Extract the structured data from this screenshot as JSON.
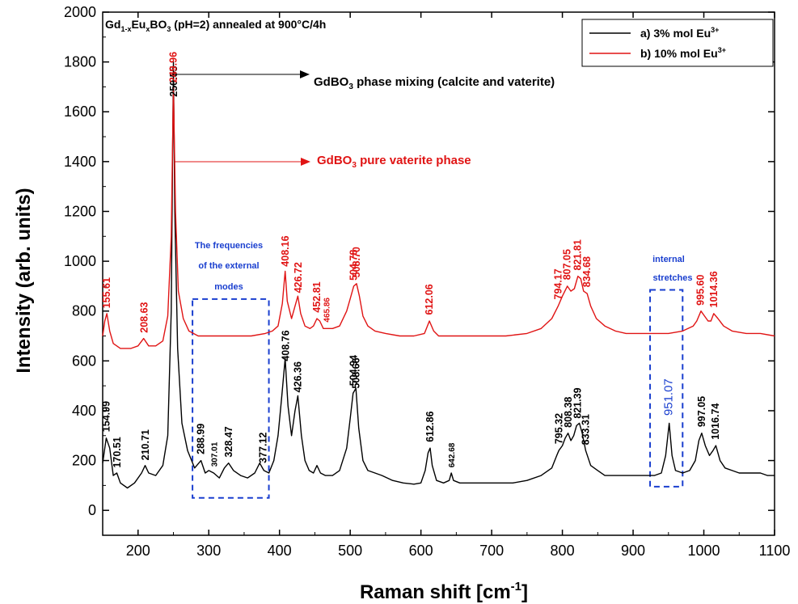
{
  "chart_data": {
    "type": "line",
    "title_parts": [
      "Gd",
      "1-x",
      "Eu",
      "x",
      "BO",
      "3",
      " (pH=2) annealed at 900°C/4h"
    ],
    "xlabel_parts": [
      "Raman shift [cm",
      "-1",
      "]"
    ],
    "ylabel": "Intensity (arb. units)",
    "xlim": [
      150,
      1100
    ],
    "ylim": [
      -100,
      2000
    ],
    "xticks": [
      200,
      300,
      400,
      500,
      600,
      700,
      800,
      900,
      1000,
      1100
    ],
    "yticks": [
      0,
      200,
      400,
      600,
      800,
      1000,
      1200,
      1400,
      1600,
      1800,
      2000
    ],
    "legend_position": "top-right",
    "series": [
      {
        "name_parts": [
          "a) 3% mol Eu",
          "3+"
        ],
        "color": "#000000",
        "points": [
          [
            150,
            190
          ],
          [
            155,
            290
          ],
          [
            160,
            250
          ],
          [
            165,
            140
          ],
          [
            170,
            150
          ],
          [
            175,
            110
          ],
          [
            185,
            90
          ],
          [
            195,
            110
          ],
          [
            205,
            150
          ],
          [
            210,
            180
          ],
          [
            215,
            150
          ],
          [
            225,
            140
          ],
          [
            235,
            180
          ],
          [
            242,
            300
          ],
          [
            247,
            800
          ],
          [
            250,
            1800
          ],
          [
            252,
            1200
          ],
          [
            256,
            650
          ],
          [
            262,
            350
          ],
          [
            270,
            240
          ],
          [
            280,
            170
          ],
          [
            289,
            200
          ],
          [
            295,
            150
          ],
          [
            300,
            160
          ],
          [
            307,
            150
          ],
          [
            315,
            130
          ],
          [
            322,
            170
          ],
          [
            328,
            190
          ],
          [
            335,
            160
          ],
          [
            345,
            140
          ],
          [
            355,
            130
          ],
          [
            365,
            150
          ],
          [
            372,
            190
          ],
          [
            378,
            160
          ],
          [
            385,
            150
          ],
          [
            392,
            200
          ],
          [
            398,
            300
          ],
          [
            403,
            450
          ],
          [
            408,
            610
          ],
          [
            412,
            420
          ],
          [
            417,
            300
          ],
          [
            422,
            400
          ],
          [
            426,
            460
          ],
          [
            431,
            300
          ],
          [
            436,
            200
          ],
          [
            442,
            160
          ],
          [
            448,
            150
          ],
          [
            453,
            180
          ],
          [
            458,
            150
          ],
          [
            465,
            140
          ],
          [
            475,
            140
          ],
          [
            485,
            160
          ],
          [
            495,
            250
          ],
          [
            500,
            370
          ],
          [
            504,
            470
          ],
          [
            508,
            490
          ],
          [
            512,
            330
          ],
          [
            518,
            200
          ],
          [
            525,
            160
          ],
          [
            535,
            150
          ],
          [
            545,
            140
          ],
          [
            560,
            120
          ],
          [
            575,
            110
          ],
          [
            590,
            105
          ],
          [
            600,
            110
          ],
          [
            606,
            160
          ],
          [
            610,
            230
          ],
          [
            613,
            250
          ],
          [
            616,
            180
          ],
          [
            622,
            120
          ],
          [
            632,
            110
          ],
          [
            640,
            120
          ],
          [
            643,
            150
          ],
          [
            646,
            120
          ],
          [
            655,
            110
          ],
          [
            670,
            110
          ],
          [
            690,
            110
          ],
          [
            710,
            110
          ],
          [
            730,
            110
          ],
          [
            750,
            120
          ],
          [
            770,
            140
          ],
          [
            785,
            170
          ],
          [
            792,
            220
          ],
          [
            795,
            240
          ],
          [
            800,
            260
          ],
          [
            804,
            290
          ],
          [
            808,
            310
          ],
          [
            812,
            280
          ],
          [
            816,
            300
          ],
          [
            820,
            340
          ],
          [
            824,
            350
          ],
          [
            828,
            310
          ],
          [
            833,
            240
          ],
          [
            840,
            180
          ],
          [
            850,
            160
          ],
          [
            860,
            140
          ],
          [
            870,
            140
          ],
          [
            880,
            140
          ],
          [
            890,
            140
          ],
          [
            900,
            140
          ],
          [
            910,
            140
          ],
          [
            920,
            140
          ],
          [
            930,
            140
          ],
          [
            940,
            150
          ],
          [
            946,
            220
          ],
          [
            951,
            350
          ],
          [
            955,
            220
          ],
          [
            960,
            160
          ],
          [
            970,
            150
          ],
          [
            980,
            160
          ],
          [
            988,
            200
          ],
          [
            993,
            280
          ],
          [
            997,
            310
          ],
          [
            1002,
            260
          ],
          [
            1008,
            220
          ],
          [
            1013,
            240
          ],
          [
            1017,
            260
          ],
          [
            1023,
            200
          ],
          [
            1030,
            170
          ],
          [
            1040,
            160
          ],
          [
            1050,
            150
          ],
          [
            1060,
            150
          ],
          [
            1070,
            150
          ],
          [
            1080,
            150
          ],
          [
            1090,
            140
          ],
          [
            1100,
            140
          ]
        ]
      },
      {
        "name_parts": [
          "b) 10% mol Eu",
          "3+"
        ],
        "color": "#e01414",
        "points": [
          [
            150,
            700
          ],
          [
            153,
            760
          ],
          [
            156,
            790
          ],
          [
            160,
            720
          ],
          [
            165,
            670
          ],
          [
            175,
            650
          ],
          [
            190,
            650
          ],
          [
            200,
            660
          ],
          [
            208,
            690
          ],
          [
            215,
            660
          ],
          [
            225,
            660
          ],
          [
            235,
            680
          ],
          [
            242,
            780
          ],
          [
            247,
            1100
          ],
          [
            250,
            1700
          ],
          [
            253,
            1200
          ],
          [
            257,
            880
          ],
          [
            264,
            770
          ],
          [
            272,
            720
          ],
          [
            285,
            700
          ],
          [
            300,
            700
          ],
          [
            320,
            700
          ],
          [
            340,
            700
          ],
          [
            360,
            700
          ],
          [
            380,
            710
          ],
          [
            390,
            720
          ],
          [
            398,
            740
          ],
          [
            404,
            830
          ],
          [
            408,
            960
          ],
          [
            411,
            840
          ],
          [
            417,
            770
          ],
          [
            422,
            820
          ],
          [
            426,
            860
          ],
          [
            430,
            790
          ],
          [
            436,
            740
          ],
          [
            443,
            730
          ],
          [
            448,
            740
          ],
          [
            453,
            770
          ],
          [
            457,
            760
          ],
          [
            462,
            730
          ],
          [
            468,
            730
          ],
          [
            475,
            730
          ],
          [
            485,
            740
          ],
          [
            495,
            800
          ],
          [
            500,
            850
          ],
          [
            505,
            900
          ],
          [
            509,
            910
          ],
          [
            513,
            860
          ],
          [
            518,
            780
          ],
          [
            525,
            740
          ],
          [
            535,
            720
          ],
          [
            550,
            710
          ],
          [
            570,
            700
          ],
          [
            590,
            700
          ],
          [
            605,
            710
          ],
          [
            612,
            760
          ],
          [
            618,
            720
          ],
          [
            625,
            700
          ],
          [
            640,
            700
          ],
          [
            660,
            700
          ],
          [
            690,
            700
          ],
          [
            720,
            700
          ],
          [
            750,
            710
          ],
          [
            770,
            730
          ],
          [
            785,
            770
          ],
          [
            794,
            820
          ],
          [
            800,
            860
          ],
          [
            807,
            900
          ],
          [
            812,
            880
          ],
          [
            817,
            890
          ],
          [
            822,
            940
          ],
          [
            826,
            930
          ],
          [
            830,
            880
          ],
          [
            835,
            870
          ],
          [
            840,
            820
          ],
          [
            848,
            770
          ],
          [
            860,
            740
          ],
          [
            875,
            720
          ],
          [
            890,
            710
          ],
          [
            910,
            710
          ],
          [
            930,
            710
          ],
          [
            950,
            710
          ],
          [
            970,
            720
          ],
          [
            985,
            740
          ],
          [
            990,
            760
          ],
          [
            996,
            800
          ],
          [
            1001,
            780
          ],
          [
            1006,
            760
          ],
          [
            1010,
            760
          ],
          [
            1014,
            790
          ],
          [
            1020,
            770
          ],
          [
            1028,
            740
          ],
          [
            1040,
            720
          ],
          [
            1060,
            710
          ],
          [
            1080,
            710
          ],
          [
            1100,
            700
          ]
        ]
      }
    ],
    "black_peak_labels": [
      "154.99",
      "170.51",
      "210.71",
      "250.55",
      "288.99",
      "307.01",
      "328.47",
      "377.12",
      "408.76",
      "426.36",
      "504.94",
      "508.66",
      "612.86",
      "642.68",
      "795.32",
      "808.38",
      "821.39",
      "833.31",
      "997.05",
      "1016.74"
    ],
    "black_peak_small": [
      "307.01",
      "642.68"
    ],
    "black_peak_positions": [
      154.99,
      170.51,
      210.71,
      250.55,
      288.99,
      307.01,
      328.47,
      377.12,
      408.76,
      426.36,
      504.94,
      508.66,
      612.86,
      642.68,
      795.32,
      808.38,
      821.39,
      833.31,
      997.05,
      1016.74
    ],
    "blue_peak_label": "951.07",
    "red_peak_labels": [
      "155.61",
      "208.63",
      "249.96",
      "408.16",
      "426.72",
      "452.81",
      "465.86",
      "504.78",
      "508.70",
      "612.06",
      "794.17",
      "807.05",
      "821.81",
      "834.68",
      "995.60",
      "1014.36"
    ],
    "red_peak_small": [
      "465.86"
    ],
    "red_peak_positions": [
      155.61,
      208.63,
      249.96,
      408.16,
      426.72,
      452.81,
      465.86,
      504.78,
      508.7,
      612.06,
      794.17,
      807.05,
      821.81,
      834.68,
      995.6,
      1014.36
    ],
    "annotations": {
      "black_arrow_parts": [
        "GdBO",
        "3",
        " phase mixing (calcite and vaterite)"
      ],
      "red_arrow_parts": [
        "GdBO",
        "3",
        " pure vaterite phase"
      ],
      "external_modes_lines": [
        "The frequencies",
        "of the external",
        "modes"
      ],
      "internal_stretches_lines": [
        "internal",
        "stretches"
      ]
    },
    "colors": {
      "series_a": "#000000",
      "series_b": "#e01414",
      "region_box": "#1a3fcf"
    }
  }
}
